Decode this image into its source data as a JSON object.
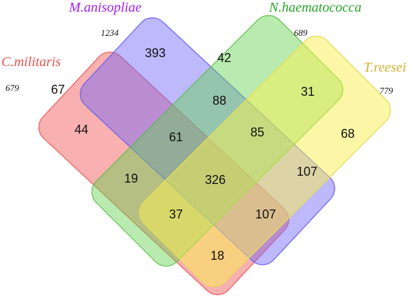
{
  "sets": [
    {
      "name": "C.militaris",
      "total": "679"
    },
    {
      "name": "M.anisopliae",
      "total": "1234"
    },
    {
      "name": "N.haematococca",
      "total": "689"
    },
    {
      "name": "T.reesei",
      "total": "779"
    }
  ],
  "regions": [
    "393",
    "42",
    "67",
    "88",
    "31",
    "44",
    "61",
    "85",
    "68",
    "19",
    "326",
    "107",
    "37",
    "107",
    "18"
  ]
}
